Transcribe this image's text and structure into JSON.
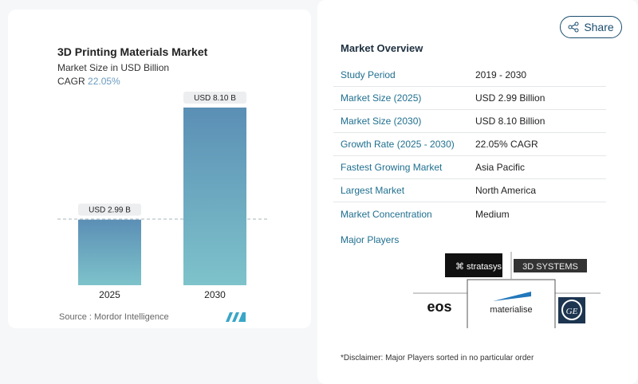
{
  "chart_data": {
    "type": "bar",
    "title": "3D Printing Materials Market",
    "subtitle": "Market Size in USD Billion",
    "cagr_label": "CAGR",
    "cagr_value": "22.05%",
    "categories": [
      "2025",
      "2030"
    ],
    "values": [
      2.99,
      8.1
    ],
    "data_labels": [
      "USD 2.99 B",
      "USD 8.10 B"
    ],
    "bar_colors": [
      "#5b8fb5",
      "#7ec3cb"
    ],
    "source": "Source :  Mordor Intelligence"
  },
  "share_label": "Share",
  "overview": {
    "title": "Market Overview",
    "rows": [
      {
        "label": "Study Period",
        "value": "2019 - 2030"
      },
      {
        "label": "Market Size (2025)",
        "value": "USD 2.99 Billion"
      },
      {
        "label": "Market Size (2030)",
        "value": "USD 8.10 Billion"
      },
      {
        "label": "Growth Rate (2025 - 2030)",
        "value": "22.05% CAGR"
      },
      {
        "label": "Fastest Growing Market",
        "value": "Asia Pacific"
      },
      {
        "label": "Largest Market",
        "value": "North America"
      },
      {
        "label": "Market Concentration",
        "value": "Medium"
      }
    ],
    "major_players_label": "Major Players",
    "players": [
      "stratasys",
      "3D SYSTEMS",
      "eos",
      "materialise",
      "GE"
    ],
    "disclaimer": "*Disclaimer: Major Players sorted in no particular order"
  }
}
